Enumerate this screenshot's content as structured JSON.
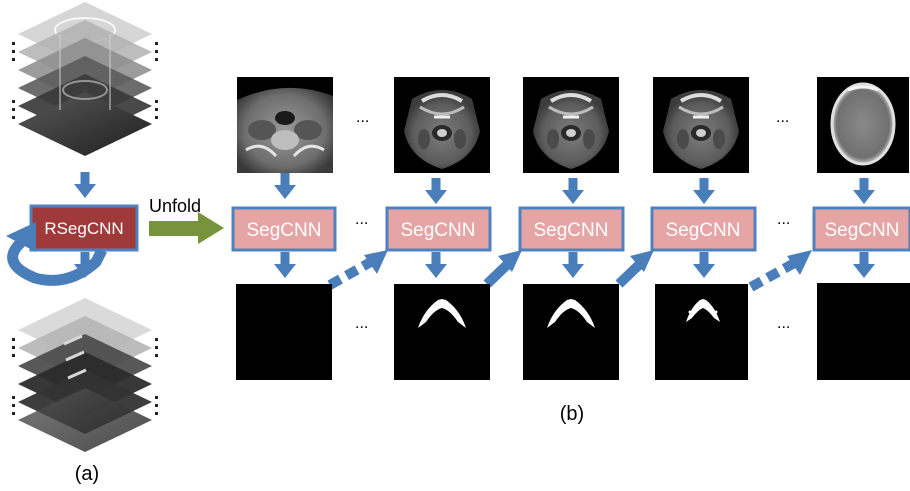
{
  "panel_a": {
    "rsegcnn_label": "RSegCNN",
    "caption": "(a)"
  },
  "unfold_label": "Unfold",
  "panel_b": {
    "caption": "(b)",
    "segcnn_label": "SegCNN",
    "ellipsis": "...",
    "columns": [
      {
        "id": "col1",
        "ct_type": "neck",
        "mask": "empty"
      },
      {
        "id": "col2",
        "ct_type": "jaw",
        "mask": "mandible"
      },
      {
        "id": "col3",
        "ct_type": "jaw",
        "mask": "mandible"
      },
      {
        "id": "col4",
        "ct_type": "jaw",
        "mask": "mandible-small"
      },
      {
        "id": "col5",
        "ct_type": "skull",
        "mask": "empty"
      }
    ]
  },
  "colors": {
    "arrow_blue": "#4a7ebb",
    "rsegcnn_fill": "#a03a3a",
    "segcnn_fill": "#e6a5a5",
    "box_border": "#4f81bd",
    "unfold_arrow": "#77933c"
  }
}
